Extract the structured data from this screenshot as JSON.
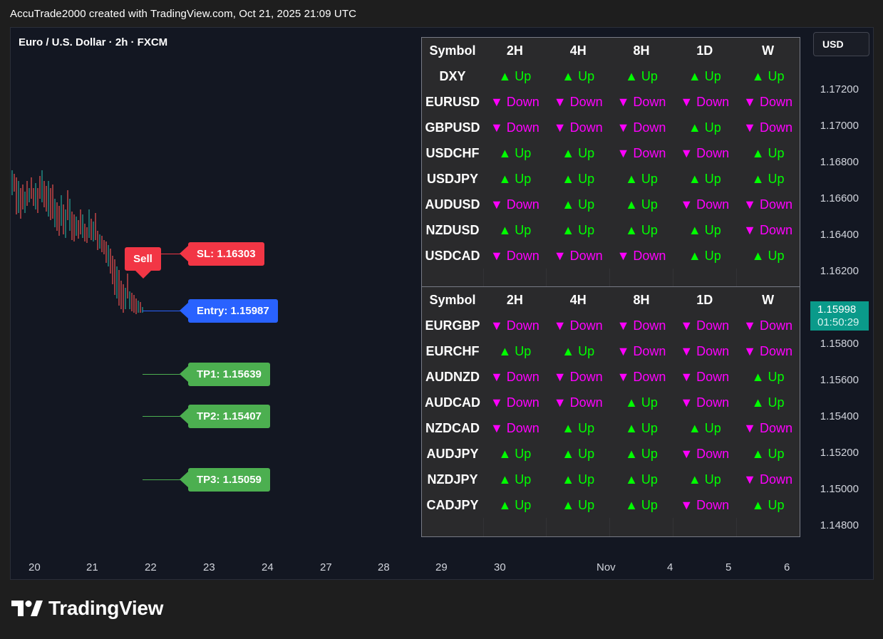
{
  "caption": "AccuTrade2000 created with TradingView.com, Oct 21, 2025 21:09 UTC",
  "symbol_title": "Euro / U.S. Dollar · 2h · FXCM",
  "currency": "USD",
  "price_axis": [
    "1.17200",
    "1.17000",
    "1.16800",
    "1.16600",
    "1.16400",
    "1.16200",
    "1.15800",
    "1.15600",
    "1.15400",
    "1.15200",
    "1.15000",
    "1.14800"
  ],
  "current_price": "1.15998",
  "countdown": "01:50:29",
  "time_axis": [
    "20",
    "21",
    "22",
    "23",
    "24",
    "27",
    "28",
    "29",
    "30",
    "Nov",
    "4",
    "5",
    "6"
  ],
  "signal": {
    "direction": "Sell",
    "sl": "SL: 1.16303",
    "entry": "Entry: 1.15987",
    "tp1": "TP1: 1.15639",
    "tp2": "TP2: 1.15407",
    "tp3": "TP3: 1.15059"
  },
  "colors": {
    "up": "#00ff00",
    "down": "#ff00ff",
    "sl": "#f23645",
    "entry": "#2962ff",
    "tp": "#4caf50",
    "price_tag": "#0a9a8a"
  },
  "table1": {
    "headers": [
      "Symbol",
      "2H",
      "4H",
      "8H",
      "1D",
      "W"
    ],
    "rows": [
      [
        "DXY",
        "▲ Up",
        "▲ Up",
        "▲ Up",
        "▲ Up",
        "▲ Up"
      ],
      [
        "EURUSD",
        "▼ Down",
        "▼ Down",
        "▼ Down",
        "▼ Down",
        "▼ Down"
      ],
      [
        "GBPUSD",
        "▼ Down",
        "▼ Down",
        "▼ Down",
        "▲ Up",
        "▼ Down"
      ],
      [
        "USDCHF",
        "▲ Up",
        "▲ Up",
        "▼ Down",
        "▼ Down",
        "▲ Up"
      ],
      [
        "USDJPY",
        "▲ Up",
        "▲ Up",
        "▲ Up",
        "▲ Up",
        "▲ Up"
      ],
      [
        "AUDUSD",
        "▼ Down",
        "▲ Up",
        "▲ Up",
        "▼ Down",
        "▼ Down"
      ],
      [
        "NZDUSD",
        "▲ Up",
        "▲ Up",
        "▲ Up",
        "▲ Up",
        "▼ Down"
      ],
      [
        "USDCAD",
        "▼ Down",
        "▼ Down",
        "▼ Down",
        "▲ Up",
        "▲ Up"
      ]
    ]
  },
  "table2": {
    "headers": [
      "Symbol",
      "2H",
      "4H",
      "8H",
      "1D",
      "W"
    ],
    "rows": [
      [
        "EURGBP",
        "▼ Down",
        "▼ Down",
        "▼ Down",
        "▼ Down",
        "▼ Down"
      ],
      [
        "EURCHF",
        "▲ Up",
        "▲ Up",
        "▼ Down",
        "▼ Down",
        "▼ Down"
      ],
      [
        "AUDNZD",
        "▼ Down",
        "▼ Down",
        "▼ Down",
        "▼ Down",
        "▲ Up"
      ],
      [
        "AUDCAD",
        "▼ Down",
        "▼ Down",
        "▲ Up",
        "▼ Down",
        "▲ Up"
      ],
      [
        "NZDCAD",
        "▼ Down",
        "▲ Up",
        "▲ Up",
        "▲ Up",
        "▼ Down"
      ],
      [
        "AUDJPY",
        "▲ Up",
        "▲ Up",
        "▲ Up",
        "▼ Down",
        "▲ Up"
      ],
      [
        "NZDJPY",
        "▲ Up",
        "▲ Up",
        "▲ Up",
        "▲ Up",
        "▼ Down"
      ],
      [
        "CADJPY",
        "▲ Up",
        "▲ Up",
        "▲ Up",
        "▼ Down",
        "▲ Up"
      ]
    ]
  },
  "brand": "TradingView"
}
